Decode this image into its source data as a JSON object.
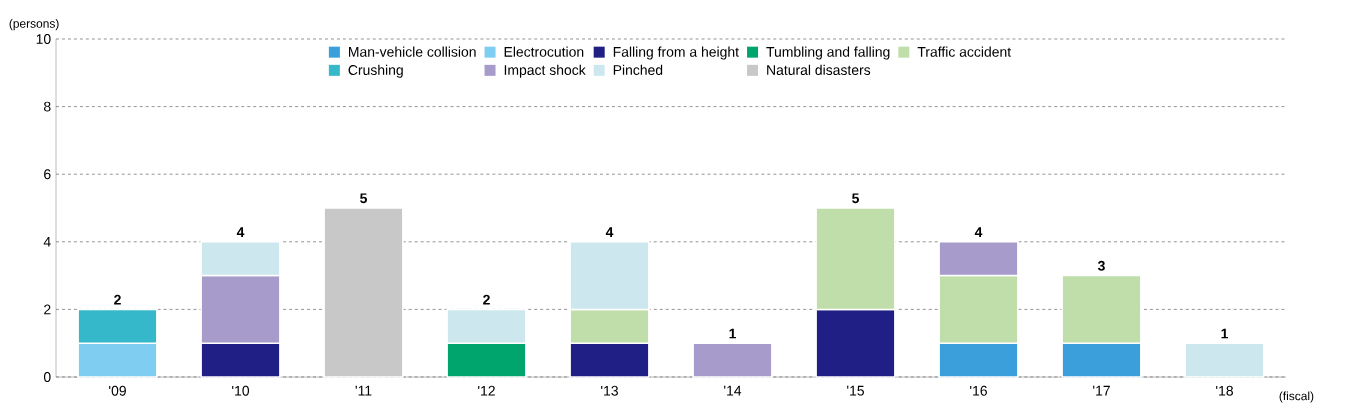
{
  "chart_data": {
    "type": "bar",
    "stacked": true,
    "ylabel": "(persons)",
    "xlabel": "(fiscal)",
    "categories": [
      "'09",
      "'10",
      "'11",
      "'12",
      "'13",
      "'14",
      "'15",
      "'16",
      "'17",
      "'18"
    ],
    "series": [
      {
        "name": "Man-vehicle collision",
        "color": "#3a9fdb",
        "values": [
          null,
          null,
          null,
          null,
          null,
          null,
          null,
          1,
          1,
          null
        ]
      },
      {
        "name": "Electrocution",
        "color": "#7fcdf0",
        "values": [
          1,
          null,
          null,
          null,
          null,
          null,
          null,
          null,
          null,
          null
        ]
      },
      {
        "name": "Falling from a height",
        "color": "#1f1f85",
        "values": [
          null,
          1,
          null,
          null,
          1,
          null,
          2,
          null,
          null,
          null
        ]
      },
      {
        "name": "Tumbling and falling",
        "color": "#00a56e",
        "values": [
          null,
          null,
          null,
          1,
          null,
          null,
          null,
          null,
          null,
          null
        ]
      },
      {
        "name": "Traffic accident",
        "color": "#c0deaa",
        "values": [
          null,
          null,
          null,
          null,
          1,
          null,
          3,
          2,
          2,
          null
        ]
      },
      {
        "name": "Crushing",
        "color": "#36b8cb",
        "values": [
          1,
          null,
          null,
          null,
          null,
          null,
          null,
          null,
          null,
          null
        ]
      },
      {
        "name": "Impact shock",
        "color": "#a69bcb",
        "values": [
          null,
          2,
          null,
          null,
          null,
          1,
          null,
          1,
          null,
          null
        ]
      },
      {
        "name": "Pinched",
        "color": "#cce8ee",
        "values": [
          null,
          1,
          null,
          1,
          2,
          null,
          null,
          null,
          null,
          1
        ]
      },
      {
        "name": "Natural disasters",
        "color": "#c8c8c8",
        "values": [
          null,
          null,
          5,
          null,
          null,
          null,
          null,
          null,
          null,
          null
        ]
      }
    ],
    "totals": [
      "2",
      "4",
      "5",
      "2",
      "4",
      "1",
      "5",
      "4",
      "3",
      "1"
    ],
    "ylim": [
      0,
      10
    ],
    "yticks": [
      0,
      2,
      4,
      6,
      8,
      10
    ],
    "grid": "y",
    "legend": "top"
  }
}
